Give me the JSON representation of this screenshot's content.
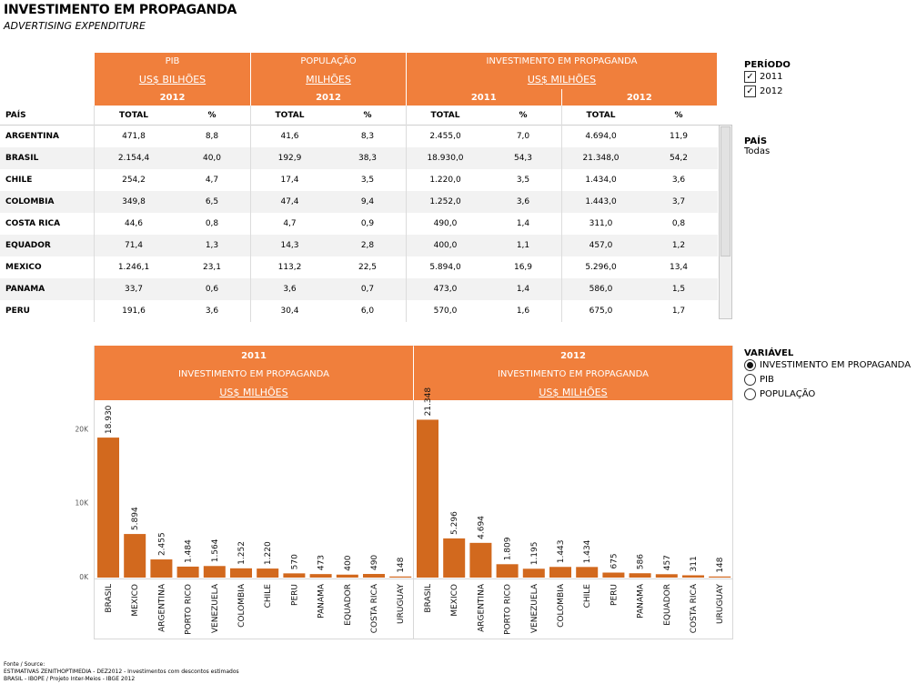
{
  "title": "INVESTIMENTO EM PROPAGANDA",
  "subtitle": "ADVERTISING EXPENDITURE",
  "table": {
    "groups": {
      "pib": {
        "name": "PIB",
        "unit": "US$ BILHÕES",
        "year": "2012"
      },
      "pop": {
        "name": "POPULAÇÃO",
        "unit": "MILHÕES",
        "year": "2012"
      },
      "inv": {
        "name": "INVESTIMENTO EM PROPAGANDA",
        "unit": "US$ MILHÕES",
        "year1": "2011",
        "year2": "2012"
      }
    },
    "row_header": "PAÍS",
    "col_total": "TOTAL",
    "col_pct": "%",
    "rows": [
      {
        "pais": "ARGENTINA",
        "pib_total": "471,8",
        "pib_pct": "8,8",
        "pop_total": "41,6",
        "pop_pct": "8,3",
        "inv11_total": "2.455,0",
        "inv11_pct": "7,0",
        "inv12_total": "4.694,0",
        "inv12_pct": "11,9"
      },
      {
        "pais": "BRASIL",
        "pib_total": "2.154,4",
        "pib_pct": "40,0",
        "pop_total": "192,9",
        "pop_pct": "38,3",
        "inv11_total": "18.930,0",
        "inv11_pct": "54,3",
        "inv12_total": "21.348,0",
        "inv12_pct": "54,2"
      },
      {
        "pais": "CHILE",
        "pib_total": "254,2",
        "pib_pct": "4,7",
        "pop_total": "17,4",
        "pop_pct": "3,5",
        "inv11_total": "1.220,0",
        "inv11_pct": "3,5",
        "inv12_total": "1.434,0",
        "inv12_pct": "3,6"
      },
      {
        "pais": "COLOMBIA",
        "pib_total": "349,8",
        "pib_pct": "6,5",
        "pop_total": "47,4",
        "pop_pct": "9,4",
        "inv11_total": "1.252,0",
        "inv11_pct": "3,6",
        "inv12_total": "1.443,0",
        "inv12_pct": "3,7"
      },
      {
        "pais": "COSTA RICA",
        "pib_total": "44,6",
        "pib_pct": "0,8",
        "pop_total": "4,7",
        "pop_pct": "0,9",
        "inv11_total": "490,0",
        "inv11_pct": "1,4",
        "inv12_total": "311,0",
        "inv12_pct": "0,8"
      },
      {
        "pais": "EQUADOR",
        "pib_total": "71,4",
        "pib_pct": "1,3",
        "pop_total": "14,3",
        "pop_pct": "2,8",
        "inv11_total": "400,0",
        "inv11_pct": "1,1",
        "inv12_total": "457,0",
        "inv12_pct": "1,2"
      },
      {
        "pais": "MEXICO",
        "pib_total": "1.246,1",
        "pib_pct": "23,1",
        "pop_total": "113,2",
        "pop_pct": "22,5",
        "inv11_total": "5.894,0",
        "inv11_pct": "16,9",
        "inv12_total": "5.296,0",
        "inv12_pct": "13,4"
      },
      {
        "pais": "PANAMA",
        "pib_total": "33,7",
        "pib_pct": "0,6",
        "pop_total": "3,6",
        "pop_pct": "0,7",
        "inv11_total": "473,0",
        "inv11_pct": "1,4",
        "inv12_total": "586,0",
        "inv12_pct": "1,5"
      },
      {
        "pais": "PERU",
        "pib_total": "191,6",
        "pib_pct": "3,6",
        "pop_total": "30,4",
        "pop_pct": "6,0",
        "inv11_total": "570,0",
        "inv11_pct": "1,6",
        "inv12_total": "675,0",
        "inv12_pct": "1,7"
      }
    ]
  },
  "filters": {
    "periodo": {
      "title": "PERÍODO",
      "options": [
        {
          "label": "2011",
          "checked": true
        },
        {
          "label": "2012",
          "checked": true
        }
      ]
    },
    "pais": {
      "title": "PAÍS",
      "value": "Todas"
    },
    "variavel": {
      "title": "VARIÁVEL",
      "options": [
        {
          "label": "INVESTIMENTO EM PROPAGANDA",
          "selected": true
        },
        {
          "label": "PIB",
          "selected": false
        },
        {
          "label": "POPULAÇÃO",
          "selected": false
        }
      ]
    }
  },
  "colors": {
    "header_orange": "#f07f3c",
    "bar": "#d2691e",
    "row_stripe": "#f2f2f2"
  },
  "chart_data": [
    {
      "type": "bar",
      "title": "2011",
      "subtitle": "INVESTIMENTO EM PROPAGANDA",
      "unit": "US$ MILHÕES",
      "categories": [
        "BRASIL",
        "MEXICO",
        "ARGENTINA",
        "PORTO RICO",
        "VENEZUELA",
        "COLOMBIA",
        "CHILE",
        "PERU",
        "PANAMA",
        "EQUADOR",
        "COSTA RICA",
        "URUGUAY"
      ],
      "values": [
        18930,
        5894,
        2455,
        1484,
        1564,
        1252,
        1220,
        570,
        473,
        400,
        490,
        148
      ],
      "value_labels": [
        "18.930",
        "5.894",
        "2.455",
        "1.484",
        "1.564",
        "1.252",
        "1.220",
        "570",
        "473",
        "400",
        "490",
        "148"
      ],
      "yticks": [
        0,
        10000,
        20000
      ],
      "ytick_labels": [
        "0K",
        "10K",
        "20K"
      ],
      "ylim": [
        0,
        23000
      ]
    },
    {
      "type": "bar",
      "title": "2012",
      "subtitle": "INVESTIMENTO EM PROPAGANDA",
      "unit": "US$ MILHÕES",
      "categories": [
        "BRASIL",
        "MEXICO",
        "ARGENTINA",
        "PORTO RICO",
        "VENEZUELA",
        "COLOMBIA",
        "CHILE",
        "PERU",
        "PANAMA",
        "EQUADOR",
        "COSTA RICA",
        "URUGUAY"
      ],
      "values": [
        21348,
        5296,
        4694,
        1809,
        1195,
        1443,
        1434,
        675,
        586,
        457,
        311,
        148
      ],
      "value_labels": [
        "21.348",
        "5.296",
        "4.694",
        "1.809",
        "1.195",
        "1.443",
        "1.434",
        "675",
        "586",
        "457",
        "311",
        "148"
      ],
      "yticks": [
        0,
        10000,
        20000
      ],
      "ytick_labels": [
        "0K",
        "10K",
        "20K"
      ],
      "ylim": [
        0,
        23000
      ]
    }
  ],
  "footer": {
    "line1": "Fonte / Source:",
    "line2": "ESTIMATIVAS ZENITHOPTIMEDIA - DEZ2012 - Investimentos com descontos estimados",
    "line3": "BRASIL - IBOPE / Projeto Inter-Meios - IBGE 2012"
  }
}
